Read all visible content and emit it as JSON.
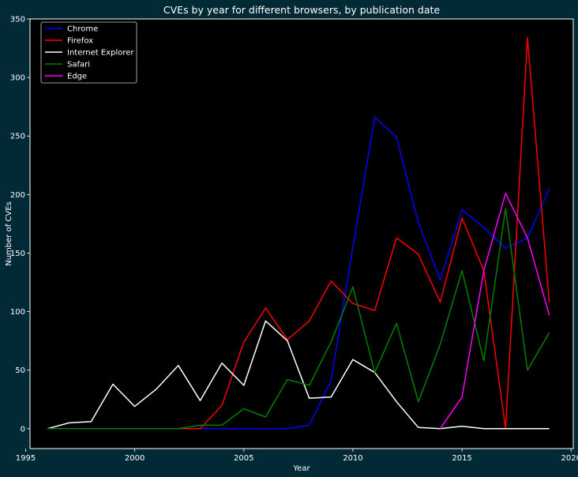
{
  "chart_data": {
    "type": "line",
    "title": "CVEs by year for different browsers, by publication date",
    "xlabel": "Year",
    "ylabel": "Number of CVEs",
    "xlim": [
      1995.2,
      2020.1
    ],
    "ylim": [
      -17,
      350
    ],
    "xticks": [
      1995,
      2000,
      2005,
      2010,
      2015,
      2020
    ],
    "yticks": [
      0,
      50,
      100,
      150,
      200,
      250,
      300,
      350
    ],
    "grid": false,
    "legend_position": "top-left",
    "x": [
      1996,
      1997,
      1998,
      1999,
      2000,
      2001,
      2002,
      2003,
      2004,
      2005,
      2006,
      2007,
      2008,
      2009,
      2010,
      2011,
      2012,
      2013,
      2014,
      2015,
      2016,
      2017,
      2018,
      2019
    ],
    "series": [
      {
        "name": "Chrome",
        "color": "#0000ff",
        "values": [
          0,
          0,
          0,
          0,
          0,
          0,
          0,
          0,
          0,
          0,
          0,
          0,
          3,
          41,
          155,
          266,
          249,
          176,
          127,
          187,
          172,
          154,
          163,
          205
        ]
      },
      {
        "name": "Firefox",
        "color": "#ff0000",
        "values": [
          0,
          0,
          0,
          0,
          0,
          0,
          0,
          0,
          20,
          74,
          103,
          76,
          92,
          126,
          107,
          101,
          163,
          149,
          108,
          180,
          135,
          0,
          334,
          108
        ]
      },
      {
        "name": "Internet Explorer",
        "color": "#ffffff",
        "values": [
          0,
          5,
          6,
          38,
          19,
          34,
          54,
          24,
          56,
          37,
          92,
          75,
          26,
          27,
          59,
          48,
          23,
          1,
          0,
          2,
          0,
          0,
          0,
          0
        ]
      },
      {
        "name": "Safari",
        "color": "#008000",
        "values": [
          0,
          0,
          0,
          0,
          0,
          0,
          0,
          3,
          3,
          17,
          10,
          42,
          37,
          74,
          121,
          48,
          90,
          23,
          72,
          135,
          58,
          188,
          50,
          82
        ]
      },
      {
        "name": "Edge",
        "color": "#ff00ff",
        "values": [
          null,
          null,
          null,
          null,
          null,
          null,
          null,
          null,
          null,
          null,
          null,
          null,
          null,
          null,
          null,
          null,
          null,
          null,
          0,
          27,
          135,
          201,
          163,
          97
        ]
      }
    ]
  }
}
